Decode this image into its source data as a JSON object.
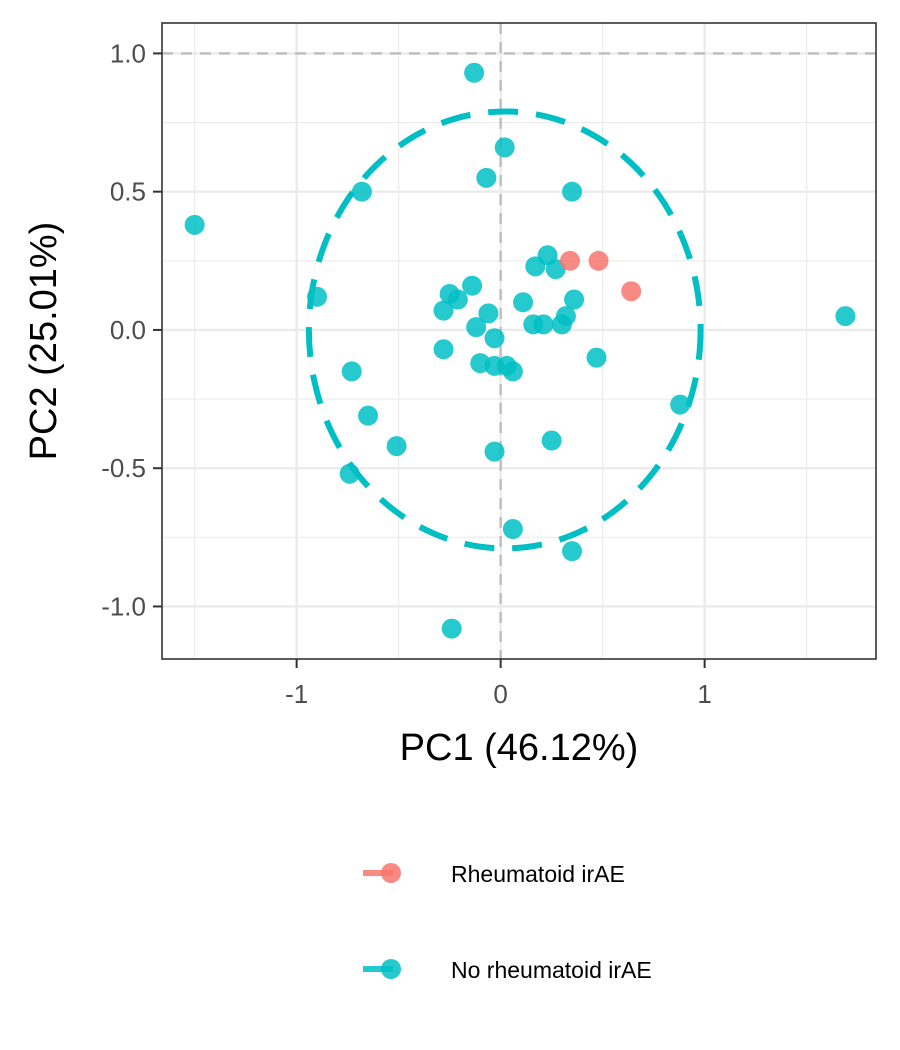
{
  "chart_data": {
    "type": "scatter",
    "xlabel": "PC1 (46.12%)",
    "ylabel": "PC2 (25.01%)",
    "xlim": [
      -1.66,
      1.84
    ],
    "ylim": [
      -1.19,
      1.11
    ],
    "x_ticks": [
      -1,
      0,
      1
    ],
    "x_tick_labels": [
      "-1",
      "0",
      "1"
    ],
    "y_ticks": [
      -1.0,
      -0.5,
      0.0,
      0.5,
      1.0
    ],
    "y_tick_labels": [
      "-1.0",
      "-0.5",
      "0.0",
      "0.5",
      "1.0"
    ],
    "grid": true,
    "reference_lines": {
      "x": 0,
      "y": 1.0
    },
    "legend_position": "bottom",
    "colors": {
      "rheumatoid": "#F8766D",
      "no_rheumatoid": "#00BFC4"
    },
    "ellipse": {
      "series": "No rheumatoid irAE",
      "center": [
        0.02,
        0.0
      ],
      "radius_x": 0.96,
      "radius_y": 0.79
    },
    "series": [
      {
        "name": "Rheumatoid irAE",
        "color": "#F8766D",
        "points": [
          [
            0.34,
            0.25
          ],
          [
            0.48,
            0.25
          ],
          [
            0.64,
            0.14
          ]
        ]
      },
      {
        "name": "No rheumatoid irAE",
        "color": "#00BFC4",
        "points": [
          [
            -1.5,
            0.38
          ],
          [
            -0.13,
            0.93
          ],
          [
            0.02,
            0.66
          ],
          [
            -0.68,
            0.5
          ],
          [
            0.35,
            0.5
          ],
          [
            -0.07,
            0.55
          ],
          [
            0.23,
            0.27
          ],
          [
            0.17,
            0.23
          ],
          [
            0.27,
            0.22
          ],
          [
            -0.9,
            0.12
          ],
          [
            -0.25,
            0.13
          ],
          [
            -0.14,
            0.16
          ],
          [
            -0.21,
            0.11
          ],
          [
            0.11,
            0.1
          ],
          [
            0.36,
            0.11
          ],
          [
            -0.28,
            0.07
          ],
          [
            -0.06,
            0.06
          ],
          [
            0.32,
            0.05
          ],
          [
            0.16,
            0.02
          ],
          [
            0.21,
            0.02
          ],
          [
            0.3,
            0.02
          ],
          [
            -0.12,
            0.01
          ],
          [
            -0.03,
            -0.03
          ],
          [
            -0.28,
            -0.07
          ],
          [
            0.47,
            -0.1
          ],
          [
            -0.1,
            -0.12
          ],
          [
            -0.03,
            -0.13
          ],
          [
            0.03,
            -0.13
          ],
          [
            0.06,
            -0.15
          ],
          [
            -0.73,
            -0.15
          ],
          [
            -0.65,
            -0.31
          ],
          [
            0.88,
            -0.27
          ],
          [
            -0.51,
            -0.42
          ],
          [
            0.25,
            -0.4
          ],
          [
            -0.03,
            -0.44
          ],
          [
            -0.74,
            -0.52
          ],
          [
            0.06,
            -0.72
          ],
          [
            0.35,
            -0.8
          ],
          [
            -0.24,
            -1.08
          ],
          [
            1.69,
            0.05
          ]
        ]
      }
    ]
  }
}
